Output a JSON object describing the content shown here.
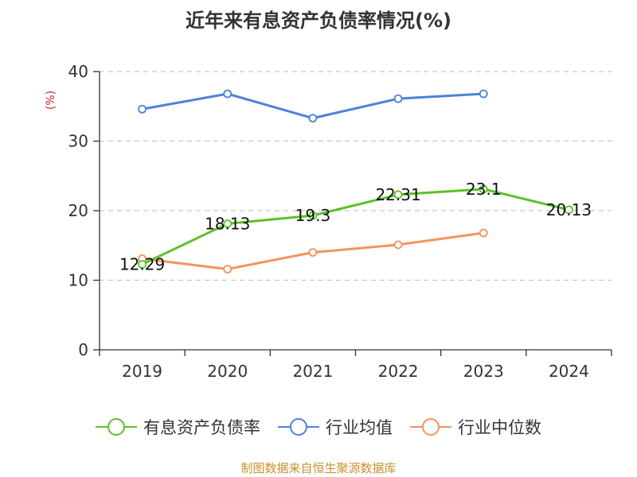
{
  "title": "近年来有息资产负债率情况(%)",
  "source": "制图数据来自恒生聚源数据库",
  "chart_data": {
    "type": "line",
    "title": "近年来有息资产负债率情况(%)",
    "ylabel": "(%)",
    "xlabel": "",
    "categories": [
      "2019",
      "2020",
      "2021",
      "2022",
      "2023",
      "2024"
    ],
    "ylim": [
      0,
      40
    ],
    "yticks": [
      0,
      10,
      20,
      30,
      40
    ],
    "grid": true,
    "legend_position": "bottom",
    "series": [
      {
        "name": "有息资产负债率",
        "color": "#5cc12a",
        "values": [
          12.29,
          18.13,
          19.3,
          22.31,
          23.1,
          20.13
        ],
        "labels": [
          "12.29",
          "18.13",
          "19.3",
          "22.31",
          "23.1",
          "20.13"
        ]
      },
      {
        "name": "行业均值",
        "color": "#4f81d9",
        "values": [
          34.6,
          36.8,
          33.3,
          36.1,
          36.8,
          null
        ]
      },
      {
        "name": "行业中位数",
        "color": "#f4935c",
        "values": [
          13.1,
          11.6,
          14.0,
          15.1,
          16.8,
          null
        ]
      }
    ]
  }
}
